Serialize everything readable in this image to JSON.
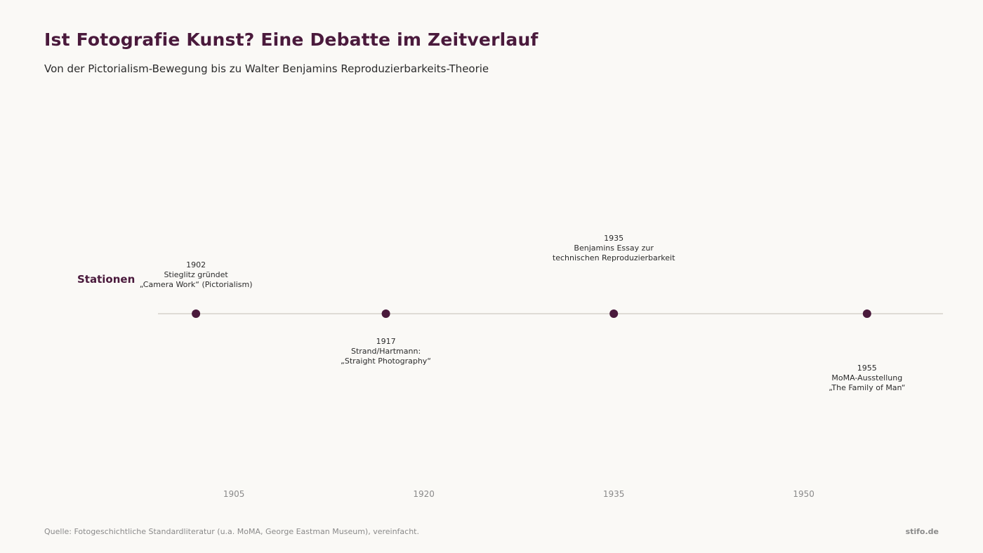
{
  "header": {
    "title": "Ist Fotografie Kunst? Eine Debatte im Zeitverlauf",
    "subtitle": "Von der Pictorialism-Bewegung bis zu Walter Benjamins Reproduzierbarkeits-Theorie"
  },
  "footer": {
    "source": "Quelle: Fotogeschichtliche Standardliteratur (u.a. MoMA, George Eastman Museum), vereinfacht.",
    "brand": "stifo.de"
  },
  "colors": {
    "accent": "#4a1a3c",
    "axis_line": "#dedbd5",
    "tick_text": "#8a8a8a",
    "label_text": "#2b2b2b"
  },
  "chart_data": {
    "type": "timeline",
    "lane_label": "Stationen",
    "xlim": [
      1899,
      1961
    ],
    "x_ticks": [
      "1905",
      "1920",
      "1935",
      "1950"
    ],
    "events": [
      {
        "year": 1902,
        "lines": [
          "1902",
          "Stieglitz gründet",
          "„Camera Work“ (Pictorialism)"
        ],
        "side": "above",
        "level": 1
      },
      {
        "year": 1917,
        "lines": [
          "1917",
          "Strand/Hartmann:",
          "„Straight Photography“"
        ],
        "side": "below",
        "level": 1
      },
      {
        "year": 1935,
        "lines": [
          "1935",
          "Benjamins Essay zur",
          "technischen Reproduzierbarkeit"
        ],
        "side": "above",
        "level": 2
      },
      {
        "year": 1955,
        "lines": [
          "1955",
          "MoMA-Ausstellung",
          "„The Family of Man“"
        ],
        "side": "below",
        "level": 2
      }
    ]
  }
}
